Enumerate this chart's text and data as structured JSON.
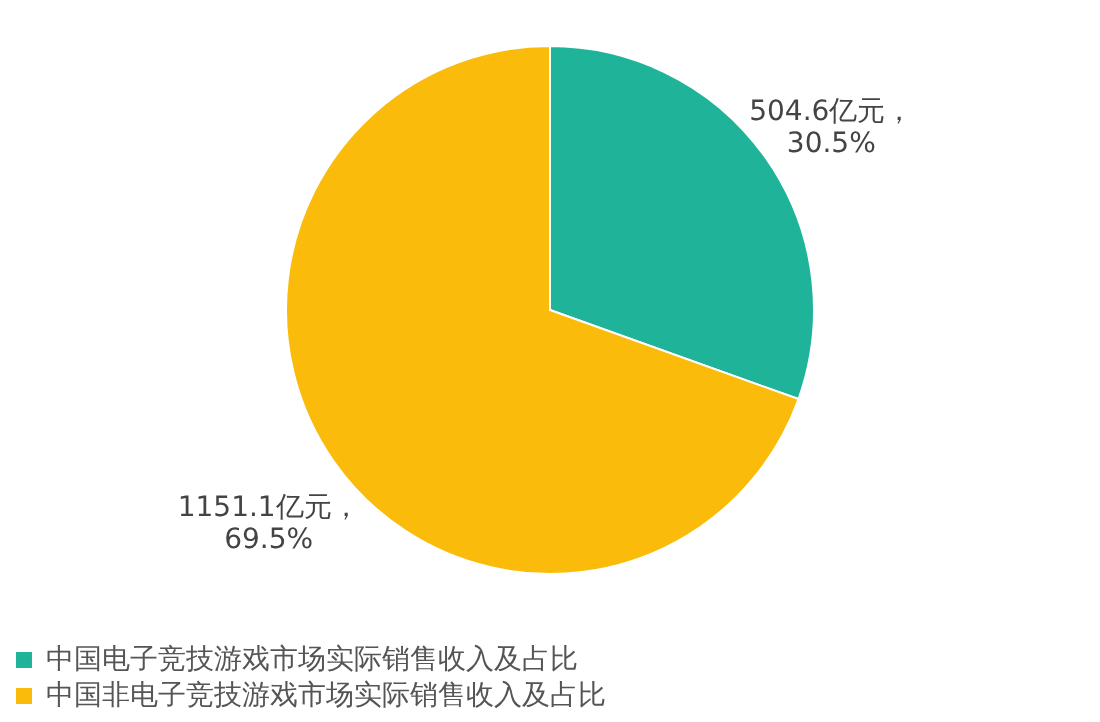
{
  "chart_data": {
    "type": "pie",
    "categories": [
      "中国电子竞技游戏市场实际销售收入及占比",
      "中国非电子竞技游戏市场实际销售收入及占比"
    ],
    "values": [
      504.6,
      1151.1
    ],
    "colors": [
      "#1fb49a",
      "#fbbb0a"
    ],
    "value_labels": [
      "504.6亿元，\n30.5%",
      "1151.1亿元，\n69.5%"
    ],
    "legend": "bottom"
  }
}
